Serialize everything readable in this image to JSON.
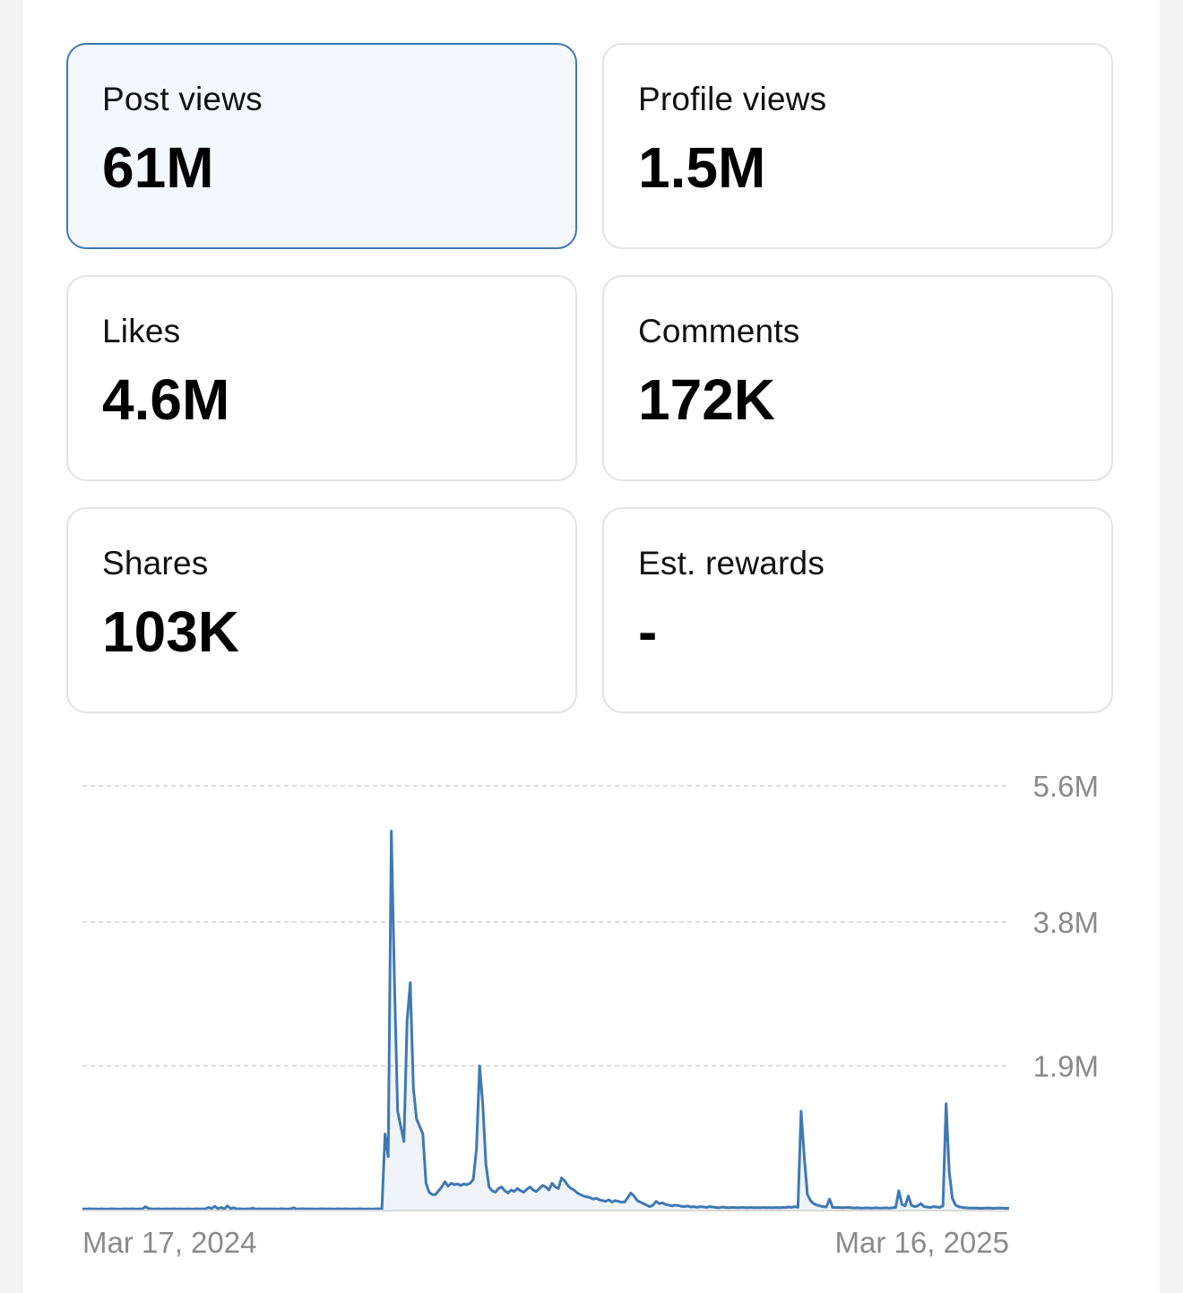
{
  "metrics": [
    {
      "label": "Post views",
      "value": "61M",
      "selected": true
    },
    {
      "label": "Profile views",
      "value": "1.5M",
      "selected": false
    },
    {
      "label": "Likes",
      "value": "4.6M",
      "selected": false
    },
    {
      "label": "Comments",
      "value": "172K",
      "selected": false
    },
    {
      "label": "Shares",
      "value": "103K",
      "selected": false
    },
    {
      "label": "Est. rewards",
      "value": "-",
      "selected": false
    }
  ],
  "colors": {
    "accent": "#3f78b5",
    "line": "#3f78b5",
    "card_border": "#e3e3e3",
    "selected_bg": "#f4f8fc",
    "axis_text": "#8a8a8a",
    "grid": "#cfcfcf"
  },
  "chart_data": {
    "type": "line",
    "x_labels": [
      "Mar 17, 2024",
      "Mar 16, 2025"
    ],
    "y_ticks": [
      {
        "value": 5600000,
        "label": "5.6M"
      },
      {
        "value": 3800000,
        "label": "3.8M"
      },
      {
        "value": 1900000,
        "label": "1.9M"
      }
    ],
    "ylim": [
      0,
      5600000
    ],
    "grid": "dashed horizontal",
    "series": [
      {
        "values": [
          10000,
          8000,
          12000,
          9000,
          11000,
          7000,
          10000,
          9000,
          8000,
          12000,
          10000,
          9000,
          8000,
          11000,
          10000,
          9000,
          12000,
          8000,
          10000,
          11000,
          40000,
          15000,
          10000,
          9000,
          12000,
          8000,
          11000,
          10000,
          9000,
          12000,
          8000,
          10000,
          9000,
          11000,
          10000,
          8000,
          12000,
          9000,
          10000,
          11000,
          30000,
          15000,
          45000,
          12000,
          30000,
          9000,
          50000,
          15000,
          25000,
          10000,
          12000,
          8000,
          11000,
          10000,
          20000,
          8000,
          12000,
          9000,
          10000,
          11000,
          9000,
          10000,
          8000,
          12000,
          10000,
          9000,
          11000,
          25000,
          8000,
          10000,
          12000,
          9000,
          10000,
          11000,
          8000,
          10000,
          12000,
          9000,
          11000,
          10000,
          8000,
          12000,
          9000,
          10000,
          11000,
          8000,
          10000,
          9000,
          12000,
          10000,
          9000,
          11000,
          8000,
          10000,
          12000,
          9000,
          1000000,
          700000,
          5000000,
          3000000,
          1300000,
          1100000,
          900000,
          2500000,
          3000000,
          1600000,
          1200000,
          1100000,
          1000000,
          350000,
          230000,
          200000,
          200000,
          250000,
          300000,
          370000,
          310000,
          350000,
          330000,
          340000,
          320000,
          340000,
          330000,
          350000,
          400000,
          800000,
          1900000,
          1400000,
          600000,
          300000,
          250000,
          230000,
          280000,
          300000,
          250000,
          220000,
          260000,
          240000,
          280000,
          250000,
          230000,
          270000,
          300000,
          260000,
          240000,
          280000,
          320000,
          300000,
          260000,
          350000,
          300000,
          280000,
          420000,
          380000,
          320000,
          280000,
          260000,
          220000,
          200000,
          180000,
          170000,
          160000,
          140000,
          150000,
          130000,
          120000,
          110000,
          130000,
          100000,
          120000,
          110000,
          100000,
          100000,
          160000,
          220000,
          180000,
          120000,
          100000,
          80000,
          60000,
          40000,
          60000,
          110000,
          80000,
          90000,
          70000,
          60000,
          50000,
          60000,
          55000,
          45000,
          40000,
          50000,
          35000,
          40000,
          30000,
          40000,
          35000,
          30000,
          40000,
          35000,
          30000,
          25000,
          35000,
          30000,
          25000,
          30000,
          28000,
          25000,
          30000,
          28000,
          25000,
          30000,
          25000,
          28000,
          25000,
          30000,
          25000,
          28000,
          25000,
          30000,
          25000,
          30000,
          28000,
          35000,
          30000,
          40000,
          30000,
          1300000,
          700000,
          200000,
          120000,
          80000,
          60000,
          50000,
          40000,
          35000,
          140000,
          30000,
          28000,
          30000,
          25000,
          28000,
          30000,
          25000,
          22000,
          25000,
          20000,
          22000,
          25000,
          20000,
          22000,
          25000,
          20000,
          22000,
          25000,
          20000,
          25000,
          30000,
          250000,
          70000,
          50000,
          180000,
          60000,
          40000,
          50000,
          80000,
          40000,
          35000,
          30000,
          40000,
          35000,
          30000,
          50000,
          1400000,
          500000,
          150000,
          60000,
          40000,
          30000,
          25000,
          22000,
          20000,
          22000,
          20000,
          18000,
          20000,
          22000,
          20000,
          18000,
          20000,
          22000,
          20000,
          18000,
          20000
        ]
      }
    ]
  }
}
